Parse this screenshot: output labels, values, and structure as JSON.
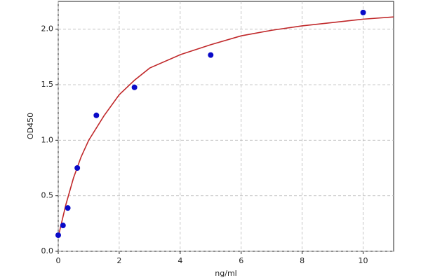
{
  "chart_data": {
    "type": "scatter",
    "x_label": "ng/ml",
    "y_label": "OD450",
    "xlim": [
      0,
      11
    ],
    "ylim": [
      0,
      2.25
    ],
    "xticks": [
      0,
      2,
      4,
      6,
      8,
      10
    ],
    "yticks": [
      {
        "value": 0,
        "label": "0.0"
      },
      0.5,
      {
        "value": 1,
        "label": "1.0"
      },
      1.5,
      {
        "value": 2,
        "label": "2.0"
      }
    ],
    "grid": true,
    "series": [
      {
        "type": "scatter",
        "color": "#0a0ac8",
        "x": [
          0,
          0.156,
          0.3125,
          0.625,
          1.25,
          2.5,
          5,
          10
        ],
        "values": [
          0.145,
          0.233,
          0.39,
          0.75,
          1.224,
          1.476,
          1.767,
          2.15
        ]
      },
      {
        "type": "line",
        "color": "#c0282a",
        "x": [
          0,
          0.25,
          0.5,
          0.75,
          1,
          1.5,
          2,
          2.5,
          3,
          4,
          5,
          6,
          7,
          8,
          9,
          10,
          11
        ],
        "values": [
          0.13,
          0.42,
          0.66,
          0.85,
          1.0,
          1.22,
          1.41,
          1.54,
          1.65,
          1.77,
          1.86,
          1.94,
          1.99,
          2.03,
          2.06,
          2.09,
          2.11
        ]
      }
    ]
  }
}
